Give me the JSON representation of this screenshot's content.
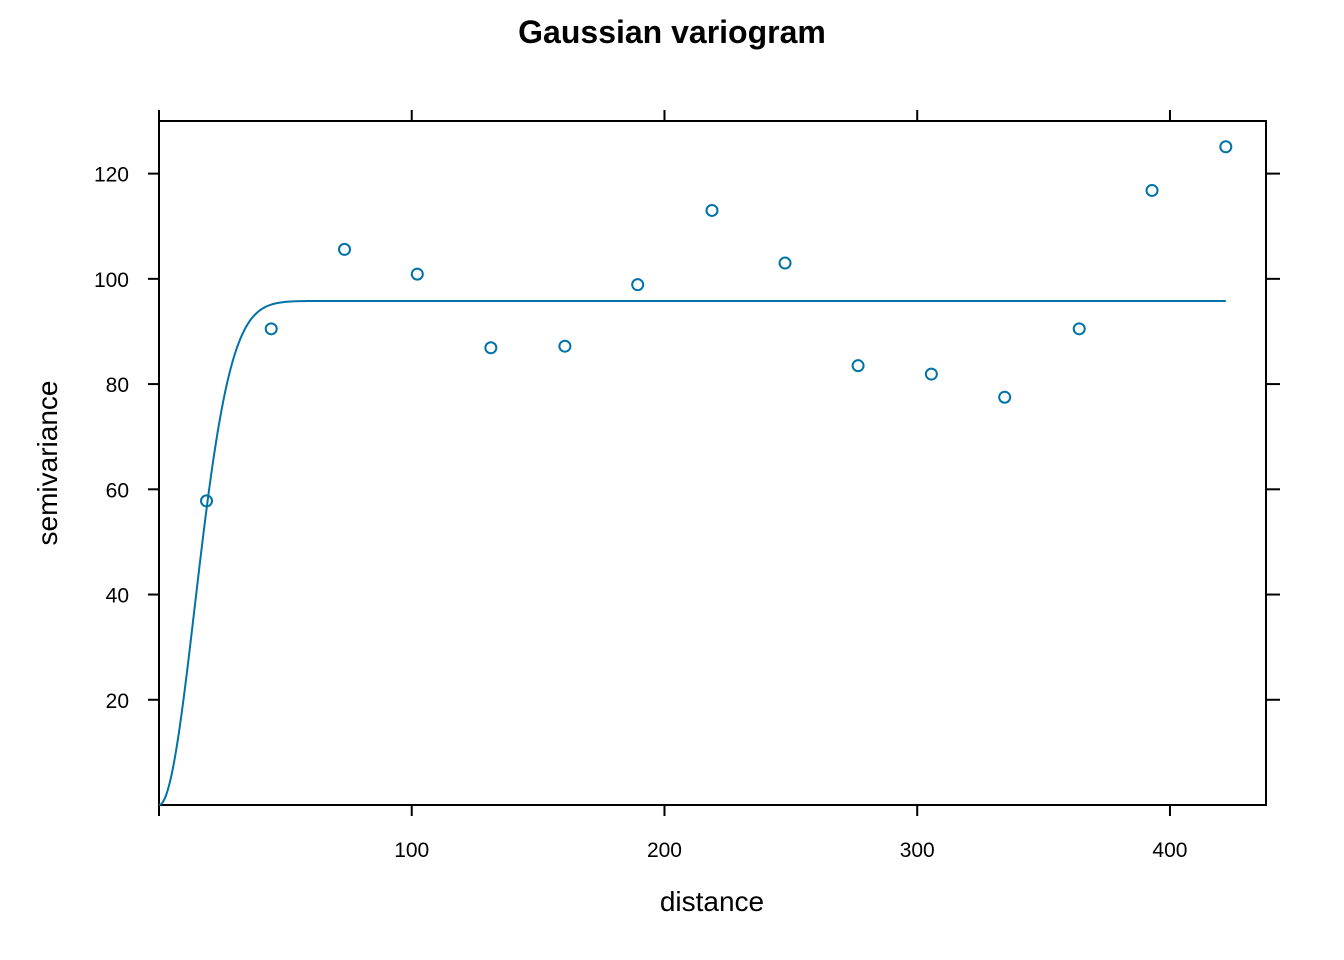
{
  "chart_data": {
    "type": "scatter",
    "title": "Gaussian variogram",
    "xlabel": "distance",
    "ylabel": "semivariance",
    "xlim": [
      0,
      438
    ],
    "ylim": [
      0,
      130
    ],
    "xticks": [
      100,
      200,
      300,
      400
    ],
    "yticks": [
      20,
      40,
      60,
      80,
      100,
      120
    ],
    "grid": false,
    "legend": "none",
    "colors": {
      "series": "#0072A8",
      "axis": "#000000"
    },
    "points": {
      "x": [
        18.8,
        44.4,
        73.4,
        102.2,
        131.3,
        160.6,
        189.4,
        218.8,
        247.7,
        276.6,
        305.6,
        334.6,
        364.1,
        392.9,
        422.1
      ],
      "y": [
        57.8,
        90.5,
        105.6,
        100.9,
        86.9,
        87.2,
        98.9,
        113.0,
        103.0,
        83.5,
        81.9,
        77.5,
        90.5,
        116.8,
        125.1
      ]
    },
    "model": {
      "type": "Gaussian",
      "nugget": 0,
      "sill": 95.8,
      "range": 20,
      "x_max": 422.1
    }
  }
}
